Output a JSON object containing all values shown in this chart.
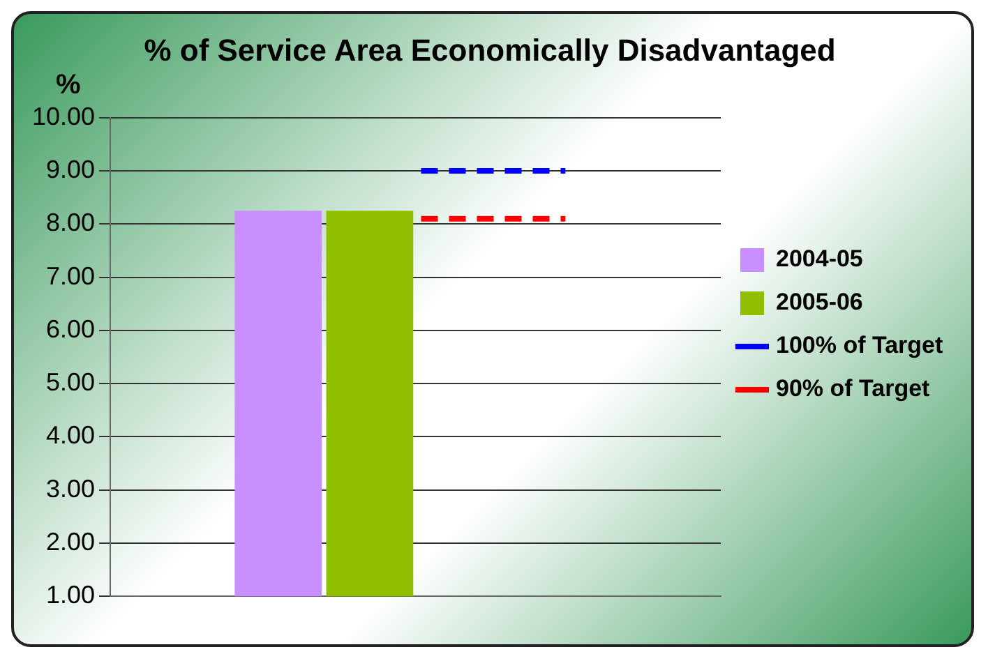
{
  "chart_data": {
    "type": "bar",
    "title": "% of Service Area Economically Disadvantaged",
    "ylabel": "%",
    "categories": [
      null
    ],
    "series": [
      {
        "name": "2004-05",
        "color": "#c98fff",
        "values": [
          8.25
        ]
      },
      {
        "name": "2005-06",
        "color": "#8fbf00",
        "values": [
          8.25
        ]
      }
    ],
    "ref_lines": [
      {
        "axis": "y",
        "value": 9.0,
        "label": "100% of Target",
        "color": "#0000ff",
        "line_style": "dashed"
      },
      {
        "axis": "y",
        "value": 8.1,
        "label": "90% of Target",
        "color": "#ff0000",
        "line_style": "dashed"
      }
    ],
    "ylim": [
      1,
      10
    ],
    "yticks": [
      {
        "value": 1,
        "label": "1.00"
      },
      {
        "value": 2,
        "label": "2.00"
      },
      {
        "value": 3,
        "label": "3.00"
      },
      {
        "value": 4,
        "label": "4.00"
      },
      {
        "value": 5,
        "label": "5.00"
      },
      {
        "value": 6,
        "label": "6.00"
      },
      {
        "value": 7,
        "label": "7.00"
      },
      {
        "value": 8,
        "label": "8.00"
      },
      {
        "value": 9,
        "label": "9.00"
      },
      {
        "value": 10,
        "label": "10.00"
      }
    ],
    "grid": "y",
    "legend": "right"
  }
}
